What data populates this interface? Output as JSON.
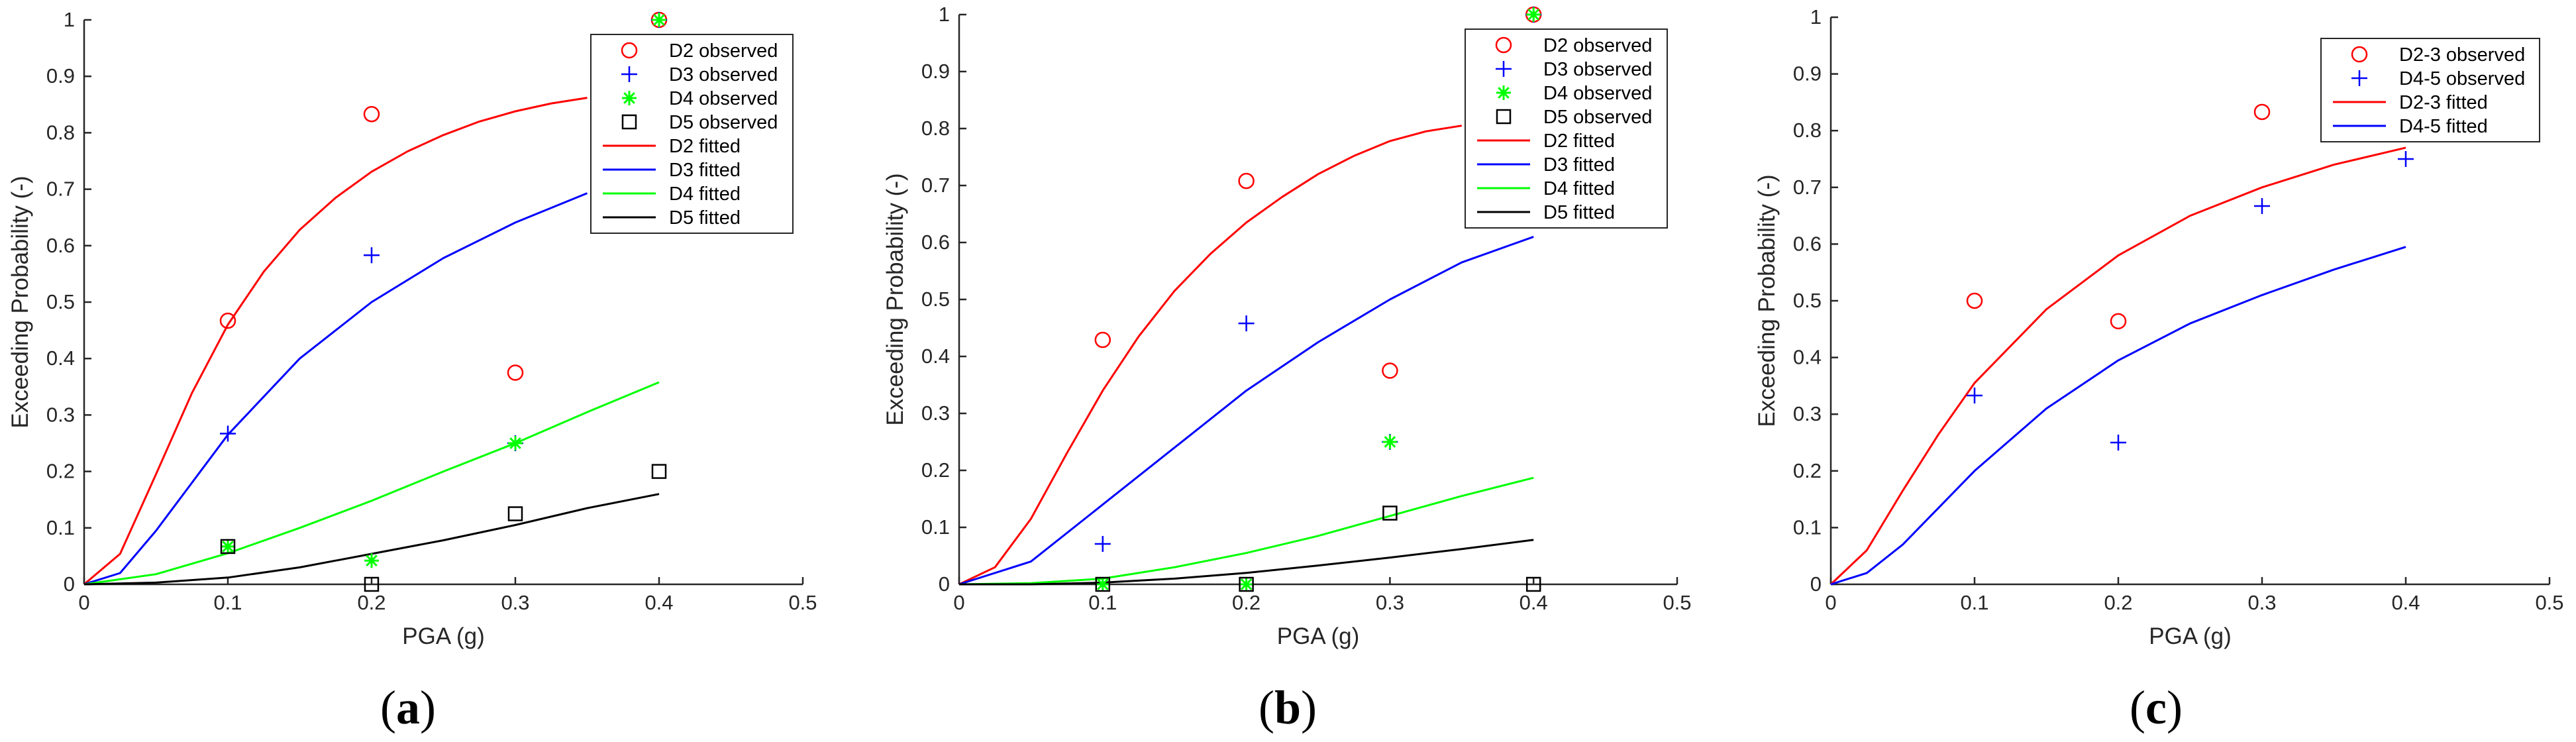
{
  "chart_data": [
    {
      "type": "scatter",
      "caption": "a",
      "xlabel": "PGA (g)",
      "ylabel": "Exceeding Probability (-)",
      "xlim": [
        0,
        0.5
      ],
      "ylim": [
        0,
        1
      ],
      "xticks": [
        "0",
        "0.1",
        "0.2",
        "0.3",
        "0.4",
        "0.5"
      ],
      "yticks": [
        "0",
        "0.1",
        "0.2",
        "0.3",
        "0.4",
        "0.5",
        "0.6",
        "0.7",
        "0.8",
        "0.9",
        "1"
      ],
      "legend_position": "top-right",
      "series": [
        {
          "name": "D2 observed",
          "kind": "points",
          "marker": "circle",
          "color": "#ff0000",
          "x": [
            0.1,
            0.2,
            0.3,
            0.4
          ],
          "y": [
            0.467,
            0.833,
            0.375,
            1.0
          ]
        },
        {
          "name": "D3 observed",
          "kind": "points",
          "marker": "plus",
          "color": "#0000ff",
          "x": [
            0.1,
            0.2,
            0.3,
            0.4
          ],
          "y": [
            0.267,
            0.583,
            0.25,
            1.0
          ]
        },
        {
          "name": "D4 observed",
          "kind": "points",
          "marker": "asterisk",
          "color": "#00ff00",
          "x": [
            0.1,
            0.2,
            0.3,
            0.4
          ],
          "y": [
            0.067,
            0.042,
            0.25,
            1.0
          ]
        },
        {
          "name": "D5 observed",
          "kind": "points",
          "marker": "square",
          "color": "#000000",
          "x": [
            0.1,
            0.2,
            0.3,
            0.4
          ],
          "y": [
            0.067,
            0.0,
            0.125,
            0.2
          ]
        },
        {
          "name": "D2 fitted",
          "kind": "line",
          "color": "#ff0000",
          "x": [
            0.0,
            0.025,
            0.05,
            0.075,
            0.1,
            0.125,
            0.15,
            0.175,
            0.2,
            0.225,
            0.25,
            0.275,
            0.3,
            0.325,
            0.35
          ],
          "y": [
            0.0,
            0.054,
            0.195,
            0.339,
            0.46,
            0.554,
            0.628,
            0.685,
            0.731,
            0.767,
            0.796,
            0.82,
            0.838,
            0.852,
            0.862
          ]
        },
        {
          "name": "D3 fitted",
          "kind": "line",
          "color": "#0000ff",
          "x": [
            0.0,
            0.025,
            0.05,
            0.075,
            0.1,
            0.15,
            0.2,
            0.25,
            0.3,
            0.35
          ],
          "y": [
            0.0,
            0.02,
            0.095,
            0.18,
            0.265,
            0.4,
            0.5,
            0.578,
            0.641,
            0.693
          ]
        },
        {
          "name": "D4 fitted",
          "kind": "line",
          "color": "#00ff00",
          "x": [
            0.0,
            0.05,
            0.1,
            0.15,
            0.2,
            0.25,
            0.3,
            0.35,
            0.4
          ],
          "y": [
            0.0,
            0.018,
            0.055,
            0.1,
            0.148,
            0.2,
            0.25,
            0.305,
            0.358
          ]
        },
        {
          "name": "D5 fitted",
          "kind": "line",
          "color": "#000000",
          "x": [
            0.0,
            0.05,
            0.1,
            0.15,
            0.2,
            0.25,
            0.3,
            0.35,
            0.4
          ],
          "y": [
            0.0,
            0.003,
            0.012,
            0.03,
            0.054,
            0.078,
            0.105,
            0.135,
            0.16
          ]
        }
      ]
    },
    {
      "type": "scatter",
      "caption": "b",
      "xlabel": "PGA (g)",
      "ylabel": "Exceeding Probability (-)",
      "xlim": [
        0,
        0.5
      ],
      "ylim": [
        0,
        1
      ],
      "xticks": [
        "0",
        "0.1",
        "0.2",
        "0.3",
        "0.4",
        "0.5"
      ],
      "yticks": [
        "0",
        "0.1",
        "0.2",
        "0.3",
        "0.4",
        "0.5",
        "0.6",
        "0.7",
        "0.8",
        "0.9",
        "1"
      ],
      "legend_position": "top-right",
      "series": [
        {
          "name": "D2 observed",
          "kind": "points",
          "marker": "circle",
          "color": "#ff0000",
          "x": [
            0.1,
            0.2,
            0.3,
            0.4
          ],
          "y": [
            0.429,
            0.708,
            0.375,
            1.0
          ]
        },
        {
          "name": "D3 observed",
          "kind": "points",
          "marker": "plus",
          "color": "#0000ff",
          "x": [
            0.1,
            0.2,
            0.3,
            0.4
          ],
          "y": [
            0.071,
            0.458,
            0.25,
            1.0
          ]
        },
        {
          "name": "D4 observed",
          "kind": "points",
          "marker": "asterisk",
          "color": "#00ff00",
          "x": [
            0.1,
            0.2,
            0.3,
            0.4
          ],
          "y": [
            0.0,
            0.0,
            0.25,
            1.0
          ]
        },
        {
          "name": "D5 observed",
          "kind": "points",
          "marker": "square",
          "color": "#000000",
          "x": [
            0.1,
            0.2,
            0.3,
            0.4
          ],
          "y": [
            0.0,
            0.0,
            0.125,
            0.0
          ]
        },
        {
          "name": "D2 fitted",
          "kind": "line",
          "color": "#ff0000",
          "x": [
            0.0,
            0.025,
            0.05,
            0.075,
            0.1,
            0.125,
            0.15,
            0.175,
            0.2,
            0.225,
            0.25,
            0.275,
            0.3,
            0.325,
            0.35
          ],
          "y": [
            0.0,
            0.03,
            0.115,
            0.23,
            0.34,
            0.435,
            0.515,
            0.58,
            0.635,
            0.68,
            0.72,
            0.752,
            0.778,
            0.795,
            0.805
          ]
        },
        {
          "name": "D3 fitted",
          "kind": "line",
          "color": "#0000ff",
          "x": [
            0.0,
            0.05,
            0.1,
            0.15,
            0.2,
            0.25,
            0.3,
            0.35,
            0.4
          ],
          "y": [
            0.0,
            0.04,
            0.14,
            0.24,
            0.34,
            0.425,
            0.5,
            0.565,
            0.61
          ]
        },
        {
          "name": "D4 fitted",
          "kind": "line",
          "color": "#00ff00",
          "x": [
            0.0,
            0.05,
            0.1,
            0.15,
            0.2,
            0.25,
            0.3,
            0.35,
            0.4
          ],
          "y": [
            0.0,
            0.002,
            0.01,
            0.03,
            0.055,
            0.085,
            0.12,
            0.155,
            0.187
          ]
        },
        {
          "name": "D5 fitted",
          "kind": "line",
          "color": "#000000",
          "x": [
            0.0,
            0.05,
            0.1,
            0.15,
            0.2,
            0.25,
            0.3,
            0.35,
            0.4
          ],
          "y": [
            0.0,
            0.0,
            0.003,
            0.01,
            0.02,
            0.033,
            0.047,
            0.062,
            0.078
          ]
        }
      ]
    },
    {
      "type": "scatter",
      "caption": "c",
      "xlabel": "PGA (g)",
      "ylabel": "Exceeding Probability (-)",
      "xlim": [
        0,
        0.5
      ],
      "ylim": [
        0,
        1
      ],
      "xticks": [
        "0",
        "0.1",
        "0.2",
        "0.3",
        "0.4",
        "0.5"
      ],
      "yticks": [
        "0",
        "0.1",
        "0.2",
        "0.3",
        "0.4",
        "0.5",
        "0.6",
        "0.7",
        "0.8",
        "0.9",
        "1"
      ],
      "legend_position": "top-right",
      "series": [
        {
          "name": "D2-3 observed",
          "kind": "points",
          "marker": "circle",
          "color": "#ff0000",
          "x": [
            0.1,
            0.2,
            0.3
          ],
          "y": [
            0.5,
            0.464,
            0.833
          ]
        },
        {
          "name": "D4-5 observed",
          "kind": "points",
          "marker": "plus",
          "color": "#0000ff",
          "x": [
            0.1,
            0.2,
            0.3,
            0.4
          ],
          "y": [
            0.333,
            0.25,
            0.667,
            0.75
          ]
        },
        {
          "name": "D2-3 fitted",
          "kind": "line",
          "color": "#ff0000",
          "x": [
            0.0,
            0.025,
            0.05,
            0.075,
            0.1,
            0.15,
            0.2,
            0.25,
            0.3,
            0.35,
            0.4
          ],
          "y": [
            0.0,
            0.06,
            0.165,
            0.265,
            0.355,
            0.485,
            0.58,
            0.65,
            0.7,
            0.74,
            0.77
          ]
        },
        {
          "name": "D4-5 fitted",
          "kind": "line",
          "color": "#0000ff",
          "x": [
            0.0,
            0.025,
            0.05,
            0.075,
            0.1,
            0.15,
            0.2,
            0.25,
            0.3,
            0.35,
            0.4
          ],
          "y": [
            0.0,
            0.02,
            0.07,
            0.135,
            0.2,
            0.31,
            0.395,
            0.46,
            0.51,
            0.555,
            0.595
          ]
        }
      ]
    }
  ]
}
